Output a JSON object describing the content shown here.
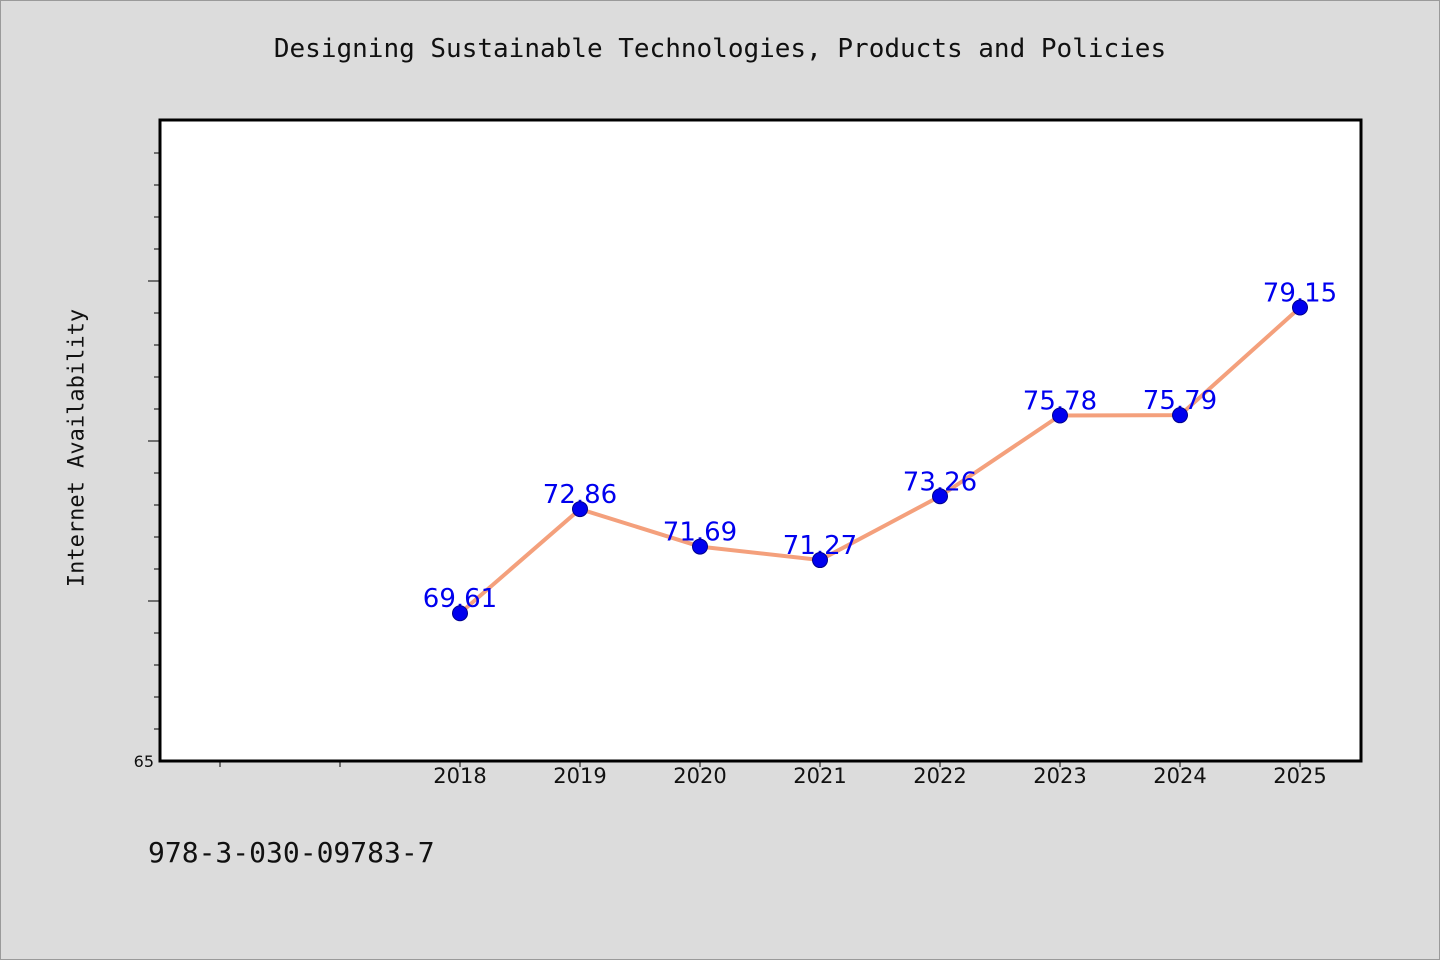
{
  "chart_data": {
    "type": "line",
    "title": "Designing Sustainable Technologies, Products and Policies",
    "xlabel": "",
    "ylabel": "Internet Availability",
    "categories": [
      "2018",
      "2019",
      "2020",
      "2021",
      "2022",
      "2023",
      "2024",
      "2025"
    ],
    "series": [
      {
        "values": [
          69.61,
          72.86,
          71.69,
          71.27,
          73.26,
          75.78,
          75.79,
          79.15
        ],
        "labels": [
          "69.61",
          "72.86",
          "71.69",
          "71.27",
          "73.26",
          "75.78",
          "75.79",
          "79.15"
        ],
        "line_color": "#f4a07c",
        "marker_color": "#0000ee",
        "label_color": "#0000ee"
      }
    ],
    "ylim": [
      65,
      85
    ],
    "y_tick_labels": [
      "65"
    ],
    "grid": false,
    "legend": "none"
  },
  "footer": {
    "isbn": "978-3-030-09783-7"
  },
  "colors": {
    "background": "#dcdcdc",
    "plot_background": "#ffffff",
    "axis": "#000000"
  }
}
